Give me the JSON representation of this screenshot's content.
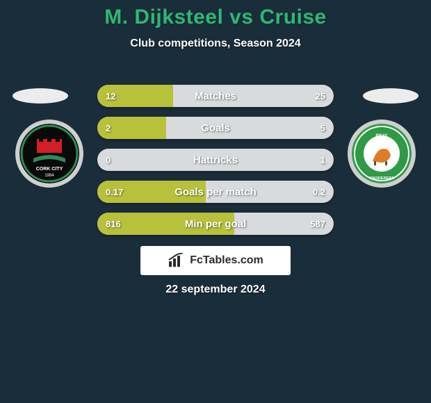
{
  "colors": {
    "page_bg": "#1a2d3a",
    "title": "#2eb872",
    "subtitle": "#ffffff",
    "elipse": "#ececec",
    "logo_ring": "#cfcfcf",
    "bar_bg": "#d9dadc",
    "bar_fill": "#b8c13a",
    "bar_text": "#ffffff",
    "brand_bg": "#ffffff",
    "brand_text": "#2b2b2b",
    "date_text": "#ffffff"
  },
  "header": {
    "title": "M. Dijksteel vs Cruise",
    "subtitle": "Club competitions, Season 2024"
  },
  "left_club": {
    "name": "Cork City",
    "crest_bg": "#0a0a0a",
    "crest_accent1": "#d41e25",
    "crest_accent2": "#2e8b57",
    "crest_text": "#ffffff"
  },
  "right_club": {
    "name": "Bray Wanderers",
    "crest_bg": "#2f9a46",
    "crest_accent1": "#ffffff",
    "crest_accent2": "#e07b2a",
    "crest_text": "#ffffff"
  },
  "bars": [
    {
      "label": "Matches",
      "left": "12",
      "right": "25",
      "fill_pct": 32
    },
    {
      "label": "Goals",
      "left": "2",
      "right": "5",
      "fill_pct": 29
    },
    {
      "label": "Hattricks",
      "left": "0",
      "right": "1",
      "fill_pct": 0
    },
    {
      "label": "Goals per match",
      "left": "0.17",
      "right": "0.2",
      "fill_pct": 46
    },
    {
      "label": "Min per goal",
      "left": "816",
      "right": "587",
      "fill_pct": 58
    }
  ],
  "brand": {
    "label": "FcTables.com"
  },
  "date": "22 september 2024"
}
